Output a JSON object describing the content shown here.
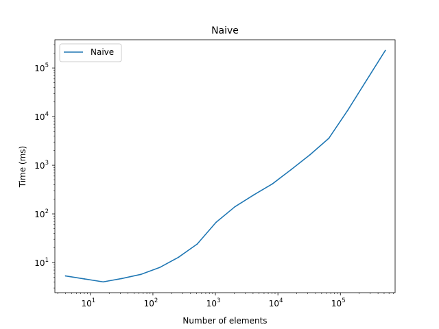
{
  "chart_data": {
    "type": "line",
    "title": "Naive",
    "xlabel": "Number of elements",
    "ylabel": "Time (ms)",
    "xscale": "log",
    "yscale": "log",
    "xlim": [
      2.7,
      750000
    ],
    "ylim": [
      2.4,
      380000
    ],
    "grid": false,
    "legend_position": "top-left",
    "x_ticks": [
      {
        "base": "10",
        "exp": "1",
        "value": 10
      },
      {
        "base": "10",
        "exp": "2",
        "value": 100
      },
      {
        "base": "10",
        "exp": "3",
        "value": 1000
      },
      {
        "base": "10",
        "exp": "4",
        "value": 10000
      },
      {
        "base": "10",
        "exp": "5",
        "value": 100000
      }
    ],
    "y_ticks": [
      {
        "base": "10",
        "exp": "1",
        "value": 10
      },
      {
        "base": "10",
        "exp": "2",
        "value": 100
      },
      {
        "base": "10",
        "exp": "3",
        "value": 1000
      },
      {
        "base": "10",
        "exp": "4",
        "value": 10000
      },
      {
        "base": "10",
        "exp": "5",
        "value": 100000
      }
    ],
    "series": [
      {
        "name": "Naive",
        "color": "#1f77b4",
        "x": [
          4,
          8,
          16,
          32,
          64,
          128,
          256,
          512,
          1024,
          2048,
          4096,
          8192,
          16384,
          32768,
          65536,
          131072,
          262144,
          524288
        ],
        "y": [
          5.3,
          4.6,
          4.0,
          4.7,
          5.7,
          7.9,
          12.8,
          24,
          67,
          140,
          245,
          415,
          820,
          1650,
          3600,
          13500,
          56000,
          230000
        ]
      }
    ]
  }
}
